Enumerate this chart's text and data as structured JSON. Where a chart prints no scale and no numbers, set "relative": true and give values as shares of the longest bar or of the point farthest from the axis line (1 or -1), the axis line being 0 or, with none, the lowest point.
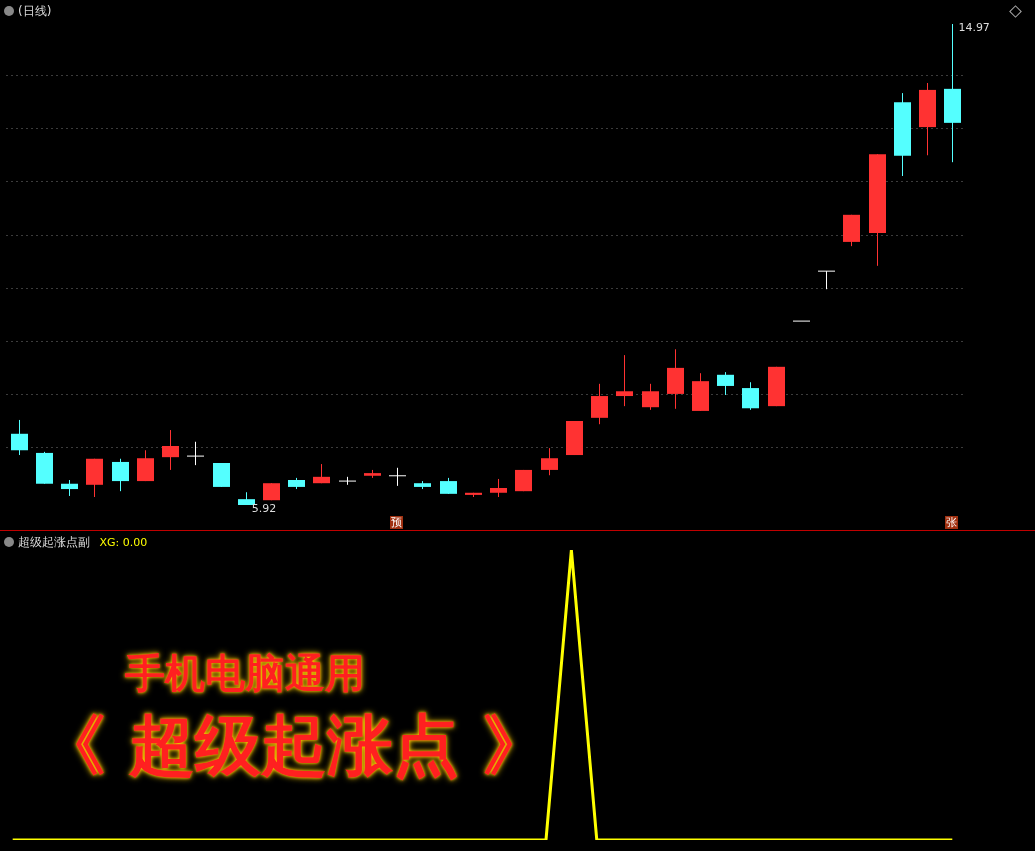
{
  "chart_data": [
    {
      "type": "candlestick",
      "title": "(日线)",
      "categories": [
        null,
        null,
        null,
        null,
        null,
        null,
        null,
        null,
        null,
        null,
        null,
        null,
        null,
        null,
        null,
        null,
        null,
        null,
        null,
        null,
        null,
        null,
        null,
        null,
        null,
        null,
        null,
        null,
        null,
        null,
        null,
        null,
        null,
        null,
        null,
        null,
        null,
        null
      ],
      "ohlc": [
        [
          7.26,
          7.52,
          6.86,
          6.95
        ],
        [
          6.9,
          6.92,
          6.32,
          6.32
        ],
        [
          6.32,
          6.39,
          6.09,
          6.22
        ],
        [
          6.3,
          6.79,
          6.07,
          6.79
        ],
        [
          6.73,
          6.79,
          6.18,
          6.37
        ],
        [
          6.37,
          6.95,
          6.37,
          6.8
        ],
        [
          6.82,
          7.33,
          6.58,
          7.03
        ],
        [
          6.84,
          7.11,
          6.67,
          6.84
        ],
        [
          6.71,
          6.71,
          6.26,
          6.26
        ],
        [
          6.03,
          6.16,
          5.92,
          5.92
        ],
        [
          6.01,
          6.33,
          6.01,
          6.33
        ],
        [
          6.39,
          6.43,
          6.22,
          6.26
        ],
        [
          6.33,
          6.69,
          6.33,
          6.45
        ],
        [
          6.37,
          6.45,
          6.3,
          6.37
        ],
        [
          6.47,
          6.58,
          6.43,
          6.52
        ],
        [
          6.47,
          6.62,
          6.28,
          6.47
        ],
        [
          6.33,
          6.37,
          6.22,
          6.26
        ],
        [
          6.37,
          6.43,
          6.13,
          6.13
        ],
        [
          6.11,
          6.15,
          6.07,
          6.15
        ],
        [
          6.15,
          6.41,
          6.07,
          6.24
        ],
        [
          6.18,
          6.58,
          6.18,
          6.58
        ],
        [
          6.58,
          6.99,
          6.48,
          6.8
        ],
        [
          6.86,
          7.5,
          6.86,
          7.5
        ],
        [
          7.56,
          8.2,
          7.44,
          7.97
        ],
        [
          7.97,
          8.74,
          7.78,
          8.06
        ],
        [
          7.76,
          8.2,
          7.71,
          8.06
        ],
        [
          8.01,
          8.85,
          7.73,
          8.5
        ],
        [
          7.69,
          8.4,
          7.69,
          8.25
        ],
        [
          8.37,
          8.42,
          7.99,
          8.16
        ],
        [
          8.12,
          8.23,
          7.71,
          7.74
        ],
        [
          7.78,
          8.52,
          7.78,
          8.52
        ],
        [
          9.38,
          9.38,
          9.38,
          9.38
        ],
        [
          10.32,
          10.32,
          9.98,
          10.32
        ],
        [
          10.87,
          11.38,
          10.79,
          11.38
        ],
        [
          11.04,
          12.52,
          10.42,
          12.52
        ],
        [
          13.5,
          13.67,
          12.11,
          12.49
        ],
        [
          13.03,
          13.86,
          12.5,
          13.73
        ],
        [
          13.75,
          14.97,
          12.37,
          13.11
        ]
      ],
      "colors": [
        "#54ffff",
        "#54ffff",
        "#54ffff",
        "#ff3232",
        "#54ffff",
        "#ff3232",
        "#ff3232",
        "#ffffff",
        "#54ffff",
        "#54ffff",
        "#ff3232",
        "#54ffff",
        "#ff3232",
        "#ffffff",
        "#ff3232",
        "#ffffff",
        "#54ffff",
        "#54ffff",
        "#ff3232",
        "#ff3232",
        "#ff3232",
        "#ff3232",
        "#ff3232",
        "#ff3232",
        "#ff3232",
        "#ff3232",
        "#ff3232",
        "#ff3232",
        "#54ffff",
        "#54ffff",
        "#ff3232",
        "#ffffff",
        "#ffffff",
        "#ff3232",
        "#ff3232",
        "#54ffff",
        "#ff3232",
        "#54ffff"
      ],
      "yticks": [
        {
          "value": 7,
          "label": null
        },
        {
          "value": 8,
          "label": null
        },
        {
          "value": 9,
          "label": null
        },
        {
          "value": 10,
          "label": null
        },
        {
          "value": 11,
          "label": null
        },
        {
          "value": 12,
          "label": null
        },
        {
          "value": 13,
          "label": null
        },
        {
          "value": 14,
          "label": null
        }
      ],
      "grid": "y",
      "legend": false,
      "annotations": [
        "14.97",
        "5.92",
        "预",
        "张"
      ]
    },
    {
      "type": "line",
      "title": "超级起涨点副",
      "relative": true,
      "categories": [
        null,
        null,
        null,
        null,
        null,
        null,
        null,
        null,
        null,
        null,
        null,
        null,
        null,
        null,
        null,
        null,
        null,
        null,
        null,
        null,
        null,
        null,
        null,
        null,
        null,
        null,
        null,
        null,
        null,
        null,
        null,
        null,
        null,
        null,
        null,
        null,
        null,
        null
      ],
      "series": [
        {
          "color": "#ffff00",
          "values": [
            0,
            0,
            0,
            0,
            0,
            0,
            0,
            0,
            0,
            0,
            0,
            0,
            0,
            0,
            0,
            0,
            0,
            0,
            0,
            0,
            0,
            0,
            1,
            0,
            0,
            0,
            0,
            0,
            0,
            0,
            0,
            0,
            0,
            0,
            0,
            0,
            0,
            0
          ]
        }
      ],
      "grid": false,
      "legend": false,
      "marker": "none",
      "line_style": "solid",
      "annotations": [
        "XG: 0.00",
        "手机电脑通用",
        "《 超级起涨点 》"
      ]
    }
  ]
}
